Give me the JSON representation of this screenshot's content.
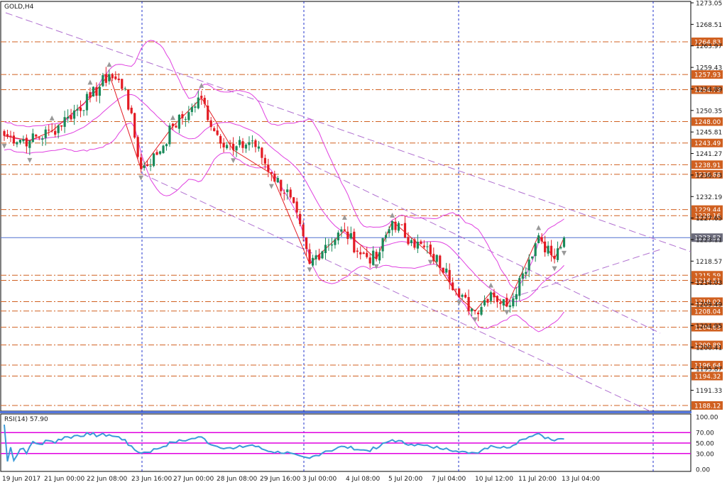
{
  "chart_title": "GOLD,H4",
  "rsi_label": "RSI(14) 57.90",
  "colors": {
    "up": "#1a8a5a",
    "down": "#e31b23",
    "bollinger": "#e040e0",
    "trendline": "#b070d0",
    "level_line": "#d06020",
    "level_label_bg": "#d06020",
    "current_price_line": "#5070d0",
    "current_price_bg": "#6b6b7b",
    "rsi_line": "#3a9ad9",
    "rsi_level_line": "#e000e0",
    "separator": "#5577dd",
    "vline": "#2233cc"
  },
  "price_axis": {
    "min": 1188.12,
    "max": 1273.05,
    "ticks": [
      "1273.05",
      "1268.51",
      "1263.97",
      "1259.43",
      "1254.89",
      "1250.35",
      "1245.81",
      "1241.27",
      "1236.73",
      "1232.19",
      "1227.65",
      "1223.11",
      "1218.57",
      "1214.03",
      "1209.49",
      "1204.95",
      "1200.41",
      "1195.87",
      "1191.33"
    ]
  },
  "levels": [
    {
      "label": "1264.83",
      "value": 1264.83
    },
    {
      "label": "1257.93",
      "value": 1257.93
    },
    {
      "label": "1254.73",
      "value": 1254.73
    },
    {
      "label": "1248.00",
      "value": 1248.0
    },
    {
      "label": "1243.49",
      "value": 1243.49
    },
    {
      "label": "1238.91",
      "value": 1238.91
    },
    {
      "label": "1236.88",
      "value": 1236.88
    },
    {
      "label": "1229.44",
      "value": 1229.44
    },
    {
      "label": "1228.16",
      "value": 1228.16
    },
    {
      "label": "1215.59",
      "value": 1215.59
    },
    {
      "label": "1214.51",
      "value": 1214.51
    },
    {
      "label": "1210.02",
      "value": 1210.02
    },
    {
      "label": "1208.04",
      "value": 1208.04
    },
    {
      "label": "1204.63",
      "value": 1204.63
    },
    {
      "label": "1200.89",
      "value": 1200.89
    },
    {
      "label": "1196.64",
      "value": 1196.64
    },
    {
      "label": "1194.32",
      "value": 1194.32
    },
    {
      "label": "1188.12",
      "value": 1188.12
    }
  ],
  "current_price": {
    "label": "1223.52",
    "value": 1223.52
  },
  "rsi_axis": {
    "ticks": [
      {
        "label": "100.00",
        "value": 100
      },
      {
        "label": "70.00",
        "value": 70
      },
      {
        "label": "50.00",
        "value": 50
      },
      {
        "label": "30.00",
        "value": 30
      },
      {
        "label": "0.00",
        "value": 0
      }
    ],
    "levels": [
      70,
      50,
      30
    ]
  },
  "time_axis": {
    "labels": [
      "19 Jun 2017",
      "21 Jun 00:00",
      "22 Jun 08:00",
      "23 Jun 16:00",
      "27 Jun 00:00",
      "28 Jun 08:00",
      "29 Jun 16:00",
      "3 Jul 00:00",
      "4 Jul 08:00",
      "5 Jul 20:00",
      "7 Jul 04:00",
      "10 Jul 12:00",
      "11 Jul 20:00",
      "13 Jul 04:00"
    ]
  },
  "chart_data": {
    "type": "candlestick",
    "title": "GOLD,H4",
    "symbol": "GOLD",
    "timeframe": "H4",
    "ylim": [
      1188.12,
      1273.05
    ],
    "current_price": 1223.52,
    "close_anchors": [
      {
        "bar": 0,
        "close": 1245
      },
      {
        "bar": 8,
        "close": 1244
      },
      {
        "bar": 15,
        "close": 1246
      },
      {
        "bar": 20,
        "close": 1249
      },
      {
        "bar": 27,
        "close": 1253
      },
      {
        "bar": 33,
        "close": 1258
      },
      {
        "bar": 38,
        "close": 1255
      },
      {
        "bar": 43,
        "close": 1238
      },
      {
        "bar": 48,
        "close": 1241
      },
      {
        "bar": 53,
        "close": 1247
      },
      {
        "bar": 58,
        "close": 1250
      },
      {
        "bar": 62,
        "close": 1253
      },
      {
        "bar": 66,
        "close": 1246
      },
      {
        "bar": 72,
        "close": 1242
      },
      {
        "bar": 78,
        "close": 1244
      },
      {
        "bar": 84,
        "close": 1237
      },
      {
        "bar": 90,
        "close": 1232
      },
      {
        "bar": 96,
        "close": 1218
      },
      {
        "bar": 101,
        "close": 1222
      },
      {
        "bar": 107,
        "close": 1225
      },
      {
        "bar": 112,
        "close": 1220
      },
      {
        "bar": 117,
        "close": 1219
      },
      {
        "bar": 122,
        "close": 1227
      },
      {
        "bar": 128,
        "close": 1223
      },
      {
        "bar": 134,
        "close": 1220
      },
      {
        "bar": 139,
        "close": 1217
      },
      {
        "bar": 143,
        "close": 1211
      },
      {
        "bar": 148,
        "close": 1208
      },
      {
        "bar": 153,
        "close": 1212
      },
      {
        "bar": 158,
        "close": 1209
      },
      {
        "bar": 163,
        "close": 1216
      },
      {
        "bar": 168,
        "close": 1224
      },
      {
        "bar": 173,
        "close": 1219
      },
      {
        "bar": 176,
        "close": 1223.52
      }
    ],
    "rsi_current": 57.9
  }
}
